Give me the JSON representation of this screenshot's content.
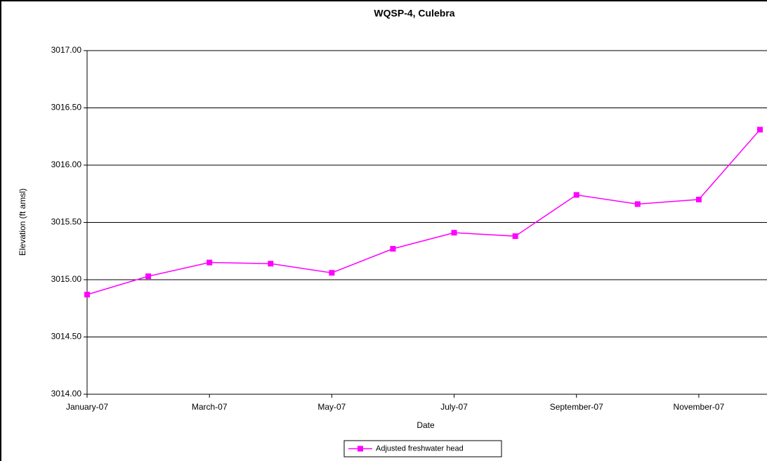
{
  "chart_data": {
    "type": "line",
    "title": "WQSP-4, Culebra",
    "x_label": "Date",
    "y_label": "Elevation (ft amsl)",
    "x": [
      "2007-01",
      "2007-02",
      "2007-03",
      "2007-04",
      "2007-05",
      "2007-06",
      "2007-07",
      "2007-08",
      "2007-09",
      "2007-10",
      "2007-11",
      "2007-12"
    ],
    "series": [
      {
        "name": "Adjusted freshwater head",
        "color": "#ff00ff",
        "values": [
          3014.87,
          3015.03,
          3015.15,
          3015.14,
          3015.06,
          3015.27,
          3015.41,
          3015.38,
          3015.74,
          3015.66,
          3015.7,
          3016.31
        ]
      }
    ],
    "xlim": [
      "2007-01",
      "2007-12"
    ],
    "xticks": [
      {
        "value": "2007-01",
        "label": "January-07"
      },
      {
        "value": "2007-03",
        "label": "March-07"
      },
      {
        "value": "2007-05",
        "label": "May-07"
      },
      {
        "value": "2007-07",
        "label": "July-07"
      },
      {
        "value": "2007-09",
        "label": "September-07"
      },
      {
        "value": "2007-11",
        "label": "November-07"
      }
    ],
    "ylim": [
      3014,
      3017
    ],
    "yticks": [
      {
        "value": 3014,
        "label": "3014.00"
      },
      {
        "value": 3014.5,
        "label": "3014.50"
      },
      {
        "value": 3015,
        "label": "3015.00"
      },
      {
        "value": 3015.5,
        "label": "3015.50"
      },
      {
        "value": 3016,
        "label": "3016.00"
      },
      {
        "value": 3016.5,
        "label": "3016.50"
      },
      {
        "value": 3017,
        "label": "3017.00"
      }
    ],
    "grid": true,
    "legend": "bottom"
  }
}
